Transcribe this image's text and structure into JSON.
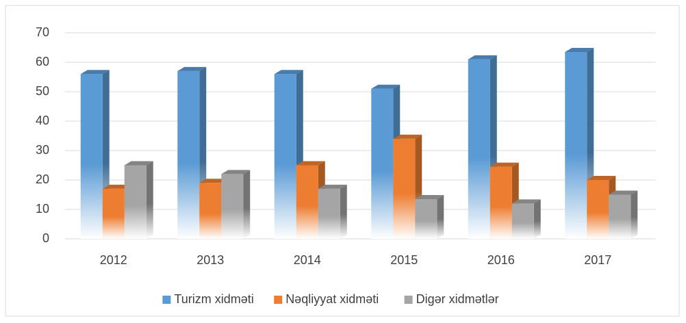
{
  "chart_data": {
    "type": "bar3d",
    "categories": [
      "2012",
      "2013",
      "2014",
      "2015",
      "2016",
      "2017"
    ],
    "series": [
      {
        "name": "Turizm xidməti",
        "color": "#5b9bd5",
        "values": [
          56,
          57,
          56,
          51,
          61,
          63.5
        ]
      },
      {
        "name": "Nəqliyyat xidməti",
        "color": "#ed7d31",
        "values": [
          17,
          19,
          25,
          34,
          24.5,
          20
        ]
      },
      {
        "name": "Digər xidmətlər",
        "color": "#a5a5a5",
        "values": [
          25,
          22,
          17,
          13.5,
          12,
          15
        ]
      }
    ],
    "ylim": [
      0,
      70
    ],
    "yticks": [
      0,
      10,
      20,
      30,
      40,
      50,
      60,
      70
    ],
    "grid": true,
    "legend": "bottom"
  }
}
